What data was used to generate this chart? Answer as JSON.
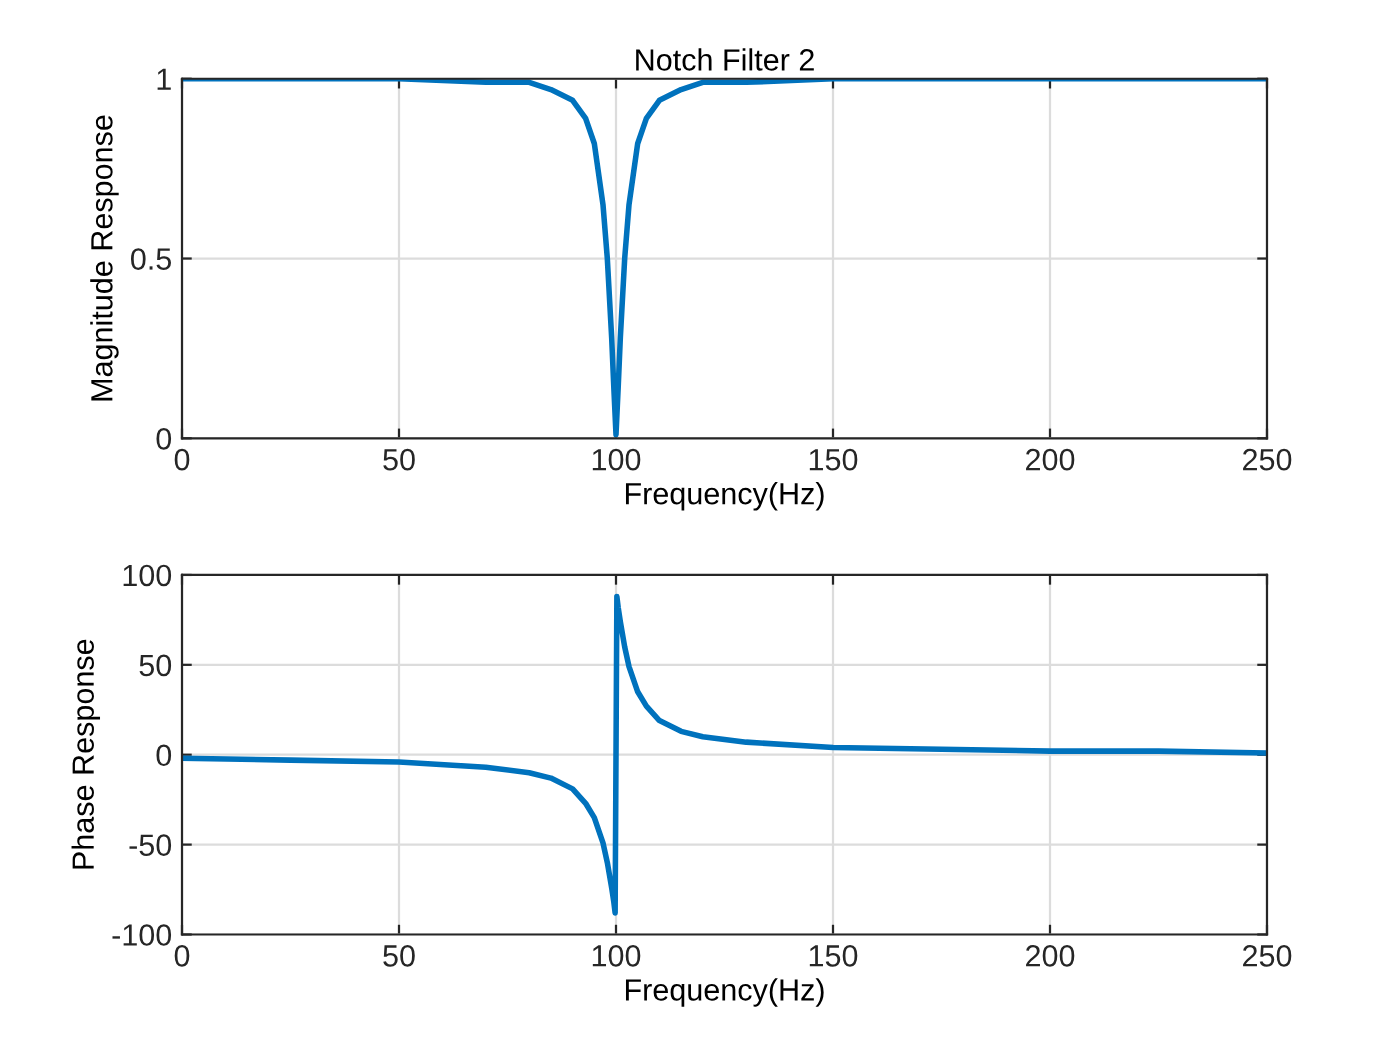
{
  "chart_data": [
    {
      "type": "line",
      "title": "Notch Filter 2",
      "xlabel": "Frequency(Hz)",
      "ylabel": "Magnitude Response",
      "xlim": [
        0,
        250
      ],
      "xticks": [
        0,
        50,
        100,
        150,
        200,
        250
      ],
      "ylim": [
        0,
        1
      ],
      "yticks": [
        0,
        0.5,
        1
      ],
      "grid": true,
      "legend": false,
      "x": [
        0,
        25,
        50,
        70,
        80,
        85,
        90,
        93,
        95,
        97,
        98,
        99,
        99.5,
        100,
        100.5,
        101,
        102,
        103,
        105,
        107,
        110,
        115,
        120,
        130,
        150,
        175,
        200,
        225,
        250
      ],
      "series": [
        {
          "color": "#0072bd",
          "values": [
            1.0,
            1.0,
            1.0,
            0.99,
            0.99,
            0.97,
            0.94,
            0.89,
            0.82,
            0.65,
            0.5,
            0.28,
            0.14,
            0.01,
            0.14,
            0.28,
            0.5,
            0.65,
            0.82,
            0.89,
            0.94,
            0.97,
            0.99,
            0.99,
            1.0,
            1.0,
            1.0,
            1.0,
            1.0
          ]
        }
      ]
    },
    {
      "type": "line",
      "xlabel": "Frequency(Hz)",
      "ylabel": "Phase Response",
      "xlim": [
        0,
        250
      ],
      "xticks": [
        0,
        50,
        100,
        150,
        200,
        250
      ],
      "ylim": [
        -100,
        100
      ],
      "yticks": [
        -100,
        -50,
        0,
        50,
        100
      ],
      "grid": true,
      "legend": false,
      "x": [
        0,
        25,
        50,
        70,
        80,
        85,
        90,
        93,
        95,
        97,
        98,
        99,
        99.5,
        99.8,
        100.2,
        100.5,
        101,
        102,
        103,
        105,
        107,
        110,
        115,
        120,
        130,
        150,
        175,
        200,
        225,
        250
      ],
      "series": [
        {
          "color": "#0072bd",
          "values": [
            -2,
            -3,
            -4,
            -7,
            -10,
            -13,
            -19,
            -27,
            -35,
            -49,
            -60,
            -74,
            -82,
            -88,
            88,
            82,
            74,
            60,
            49,
            35,
            27,
            19,
            13,
            10,
            7,
            4,
            3,
            2,
            2,
            1
          ]
        }
      ]
    }
  ]
}
